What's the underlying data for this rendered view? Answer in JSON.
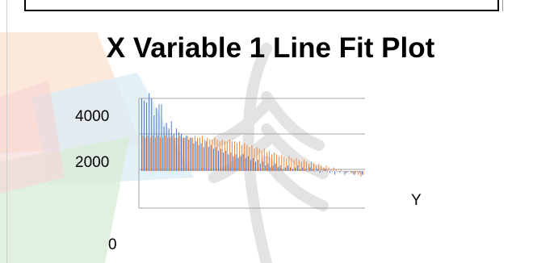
{
  "colors": {
    "actual": "#4472c4",
    "predicted": "#ed7d31",
    "grid": "#a6a6a6",
    "watermark_green": "#d8eed7",
    "watermark_orange": "#fbe3cf",
    "watermark_blue": "#d9ecf7",
    "watermark_red": "#f7d4d4"
  },
  "chart_data": {
    "type": "bar",
    "title": "X Variable 1 Line Fit Plot",
    "y_tick_labels": [
      "4000",
      "2000",
      "0"
    ],
    "legend_label": "Y",
    "ylim": [
      0,
      4000
    ],
    "grid": true,
    "series": [
      {
        "name": "",
        "color": "#4472c4",
        "values": [
          3950,
          3900,
          3850,
          4100,
          3950,
          3500,
          3700,
          3800,
          3800,
          3200,
          3300,
          3150,
          3350,
          3000,
          3150,
          3050,
          3000,
          2900,
          2950,
          2850,
          2900,
          2750,
          2800,
          2700,
          2750,
          2650,
          2800,
          2650,
          2700,
          2600,
          2650,
          2550,
          2600,
          2500,
          2550,
          2450,
          2500,
          2400,
          2450,
          2350,
          2400,
          2450,
          2350,
          2400,
          2300,
          2350,
          2250,
          2300,
          2200,
          2250,
          2150,
          2200,
          2100,
          2150,
          2200,
          2100,
          2150,
          2050,
          2100,
          2150,
          2100,
          2050,
          2100,
          2150,
          2050,
          2100,
          2050,
          2000,
          2100,
          2050,
          2000,
          2050,
          1950,
          2000,
          2050,
          2000,
          1950,
          2000,
          1900,
          2000,
          1950,
          2000,
          1900,
          1950,
          2000,
          1950,
          1900,
          2000,
          1950,
          1900
        ]
      },
      {
        "name": "",
        "color": "#ed7d31",
        "values": [
          2950,
          2900,
          2950,
          2900,
          2950,
          2900,
          2950,
          2900,
          2900,
          2950,
          2900,
          2900,
          2950,
          2900,
          2900,
          2950,
          2900,
          2900,
          2950,
          2900,
          2900,
          2950,
          2900,
          2900,
          2950,
          2850,
          2900,
          2850,
          2850,
          2900,
          2850,
          2800,
          2850,
          2800,
          2800,
          2850,
          2800,
          2800,
          2750,
          2800,
          2700,
          2750,
          2700,
          2650,
          2700,
          2600,
          2650,
          2600,
          2550,
          2600,
          2500,
          2550,
          2450,
          2500,
          2450,
          2400,
          2450,
          2400,
          2350,
          2400,
          2350,
          2300,
          2350,
          2300,
          2250,
          2300,
          2250,
          2200,
          2250,
          2200,
          2150,
          2200,
          2150,
          2100,
          2150,
          2100,
          2050,
          2100,
          2050,
          2000,
          2050,
          2000,
          1950,
          2000,
          1950,
          1900,
          1950,
          1900,
          1850,
          1900
        ]
      }
    ]
  }
}
